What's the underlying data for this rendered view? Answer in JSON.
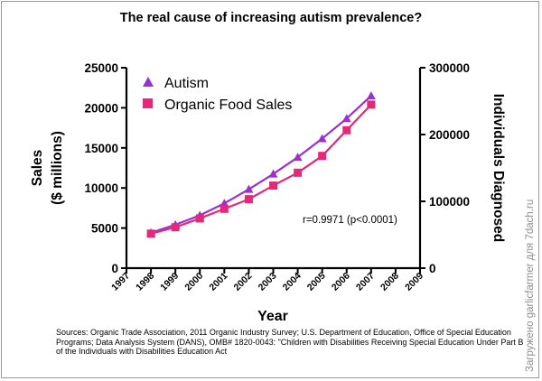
{
  "title": "The real cause of increasing autism prevalence?",
  "sources": "Sources: Organic Trade Association,  2011 Organic Industry Survey; U.S. Department of Education, Office of Special Education Programs; Data Analysis System (DANS), OMB# 1820-0043: \"Children with Disabilities Receiving Special Education Under Part B of the Individuals with Disabilities Education Act",
  "watermark": "Загружено garlicfarmer для 7dach.ru",
  "annotation": "r=0.9971 (p<0.0001)",
  "chart_data": {
    "type": "line",
    "title": "The real cause of increasing autism prevalence?",
    "xlabel": "Year",
    "ylabel_left": "Sales\n($ millions)",
    "ylabel_right": "Individuals Diagnosed",
    "xlim": [
      1997,
      2009
    ],
    "x_ticks": [
      "1997",
      "1998",
      "1999",
      "2000",
      "2001",
      "2002",
      "2003",
      "2004",
      "2005",
      "2006",
      "2007",
      "2008",
      "2009"
    ],
    "ylim_left": [
      0,
      25000
    ],
    "y_ticks_left": [
      "0",
      "5000",
      "10000",
      "15000",
      "20000",
      "25000"
    ],
    "ylim_right": [
      0,
      300000
    ],
    "y_ticks_right": [
      "0",
      "100000",
      "200000",
      "300000"
    ],
    "legend_position": "top-left",
    "grid": false,
    "series": [
      {
        "name": "Autism",
        "axis": "right",
        "marker": "triangle",
        "color": "#9B30D0",
        "x": [
          1998,
          1999,
          2000,
          2001,
          2002,
          2003,
          2004,
          2005,
          2006,
          2007
        ],
        "values": [
          53000,
          65000,
          79000,
          97000,
          118000,
          141000,
          166000,
          194000,
          224000,
          258000
        ]
      },
      {
        "name": "Organic Food Sales",
        "axis": "left",
        "marker": "square",
        "color": "#E5287A",
        "x": [
          1998,
          1999,
          2000,
          2001,
          2002,
          2003,
          2004,
          2005,
          2006,
          2007
        ],
        "values": [
          4300,
          5100,
          6200,
          7400,
          8600,
          10300,
          11900,
          14000,
          17200,
          20400
        ]
      }
    ]
  }
}
